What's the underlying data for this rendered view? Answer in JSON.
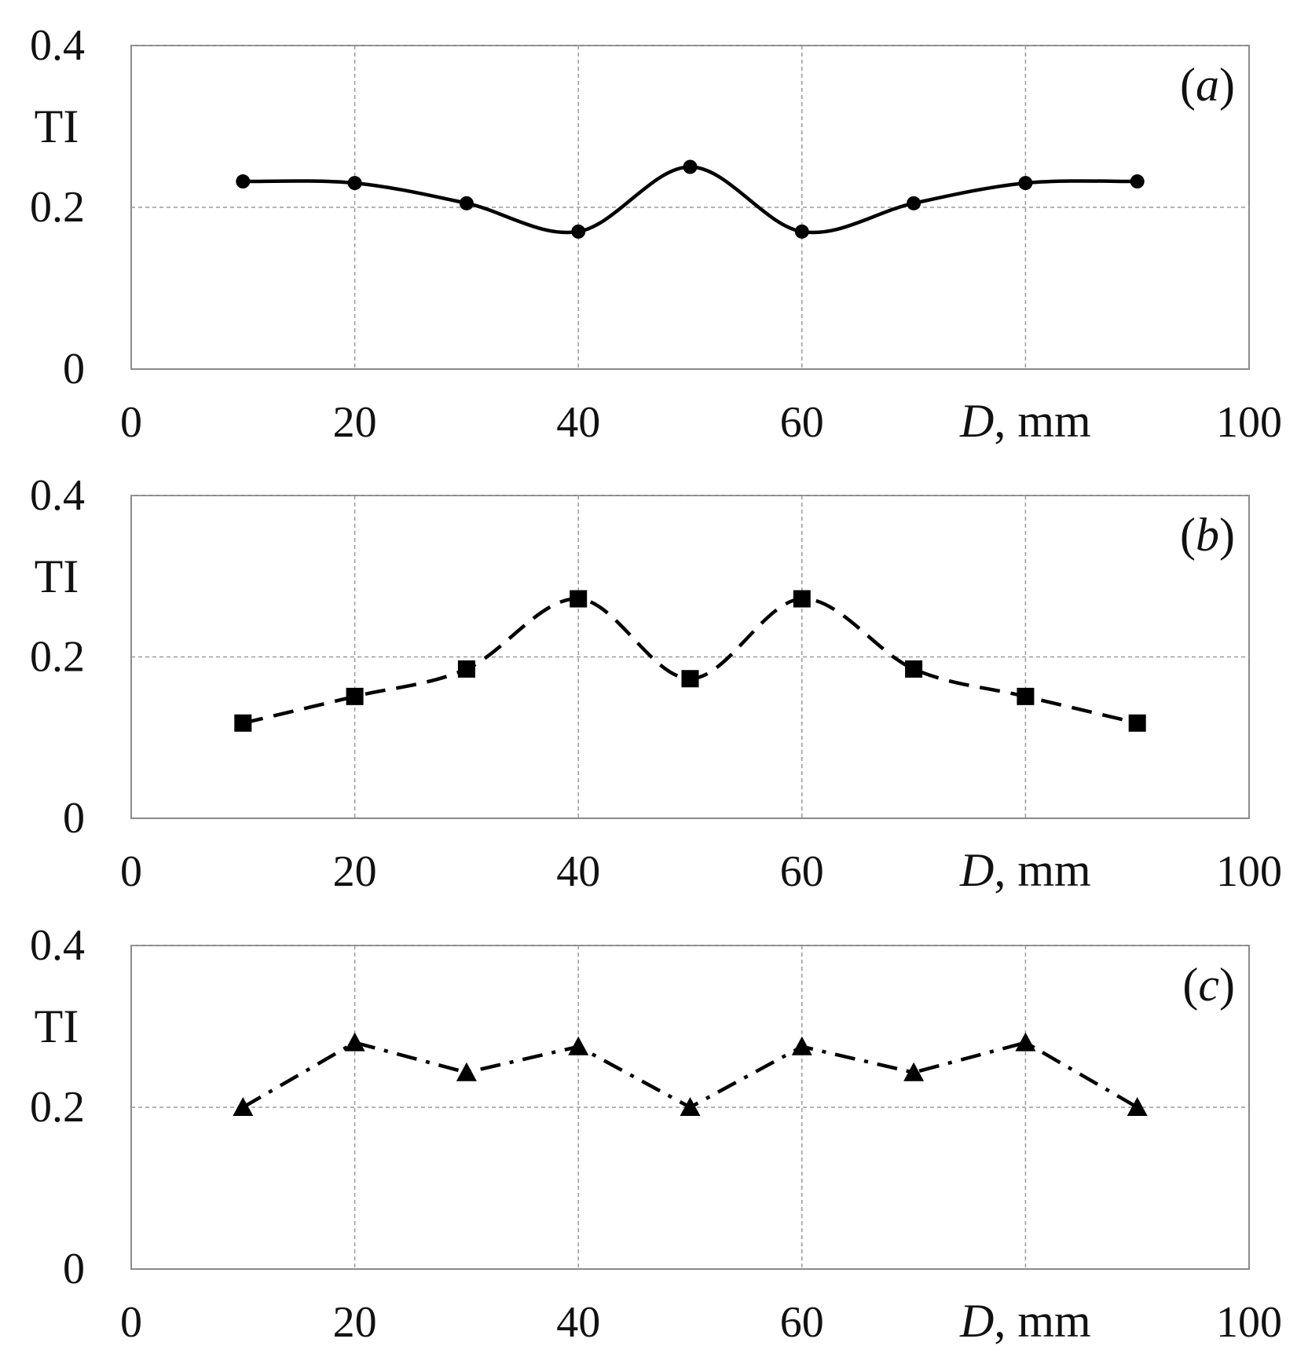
{
  "chart_data": [
    {
      "type": "line",
      "panel_label": {
        "open": "(",
        "letter": "a",
        "close": ")"
      },
      "ylabel": "TI",
      "xlabel": {
        "var": "D",
        "unit": ", mm"
      },
      "xlim": [
        0,
        100
      ],
      "ylim": [
        0,
        0.4
      ],
      "x_ticks": [
        0,
        20,
        40,
        60,
        100
      ],
      "x_tick_labels": [
        "0",
        "20",
        "40",
        "60",
        "100"
      ],
      "x_gridlines": [
        20,
        40,
        60,
        80
      ],
      "y_ticks": [
        0,
        0.2,
        0.4
      ],
      "y_tick_labels": [
        "0",
        "0.2",
        "0.4"
      ],
      "grid": true,
      "series": [
        {
          "name": "a",
          "line_style": "solid",
          "marker": "circle",
          "smooth": true,
          "x": [
            10,
            20,
            30,
            40,
            50,
            60,
            70,
            80,
            90
          ],
          "values": [
            0.232,
            0.23,
            0.205,
            0.17,
            0.25,
            0.17,
            0.205,
            0.23,
            0.232
          ]
        }
      ]
    },
    {
      "type": "line",
      "panel_label": {
        "open": "(",
        "letter": "b",
        "close": ")"
      },
      "ylabel": "TI",
      "xlabel": {
        "var": "D",
        "unit": ", mm"
      },
      "xlim": [
        0,
        100
      ],
      "ylim": [
        0,
        0.4
      ],
      "x_ticks": [
        0,
        20,
        40,
        60,
        100
      ],
      "x_tick_labels": [
        "0",
        "20",
        "40",
        "60",
        "100"
      ],
      "x_gridlines": [
        20,
        40,
        60,
        80
      ],
      "y_ticks": [
        0,
        0.2,
        0.4
      ],
      "y_tick_labels": [
        "0",
        "0.2",
        "0.4"
      ],
      "grid": true,
      "series": [
        {
          "name": "b",
          "line_style": "dashed",
          "marker": "square",
          "smooth": true,
          "x": [
            10,
            20,
            30,
            40,
            50,
            60,
            70,
            80,
            90
          ],
          "values": [
            0.118,
            0.151,
            0.185,
            0.272,
            0.173,
            0.272,
            0.185,
            0.151,
            0.118
          ]
        }
      ]
    },
    {
      "type": "line",
      "panel_label": {
        "open": "(",
        "letter": "c",
        "close": ")"
      },
      "ylabel": "TI",
      "xlabel": {
        "var": "D",
        "unit": ", mm"
      },
      "xlim": [
        0,
        100
      ],
      "ylim": [
        0,
        0.4
      ],
      "x_ticks": [
        0,
        20,
        40,
        60,
        100
      ],
      "x_tick_labels": [
        "0",
        "20",
        "40",
        "60",
        "100"
      ],
      "x_gridlines": [
        20,
        40,
        60,
        80
      ],
      "y_ticks": [
        0,
        0.2,
        0.4
      ],
      "y_tick_labels": [
        "0",
        "0.2",
        "0.4"
      ],
      "grid": true,
      "series": [
        {
          "name": "c",
          "line_style": "dashdot",
          "marker": "triangle",
          "smooth": false,
          "x": [
            10,
            20,
            30,
            40,
            50,
            60,
            70,
            80,
            90
          ],
          "values": [
            0.2,
            0.28,
            0.243,
            0.275,
            0.2,
            0.275,
            0.243,
            0.28,
            0.2
          ]
        }
      ]
    }
  ]
}
